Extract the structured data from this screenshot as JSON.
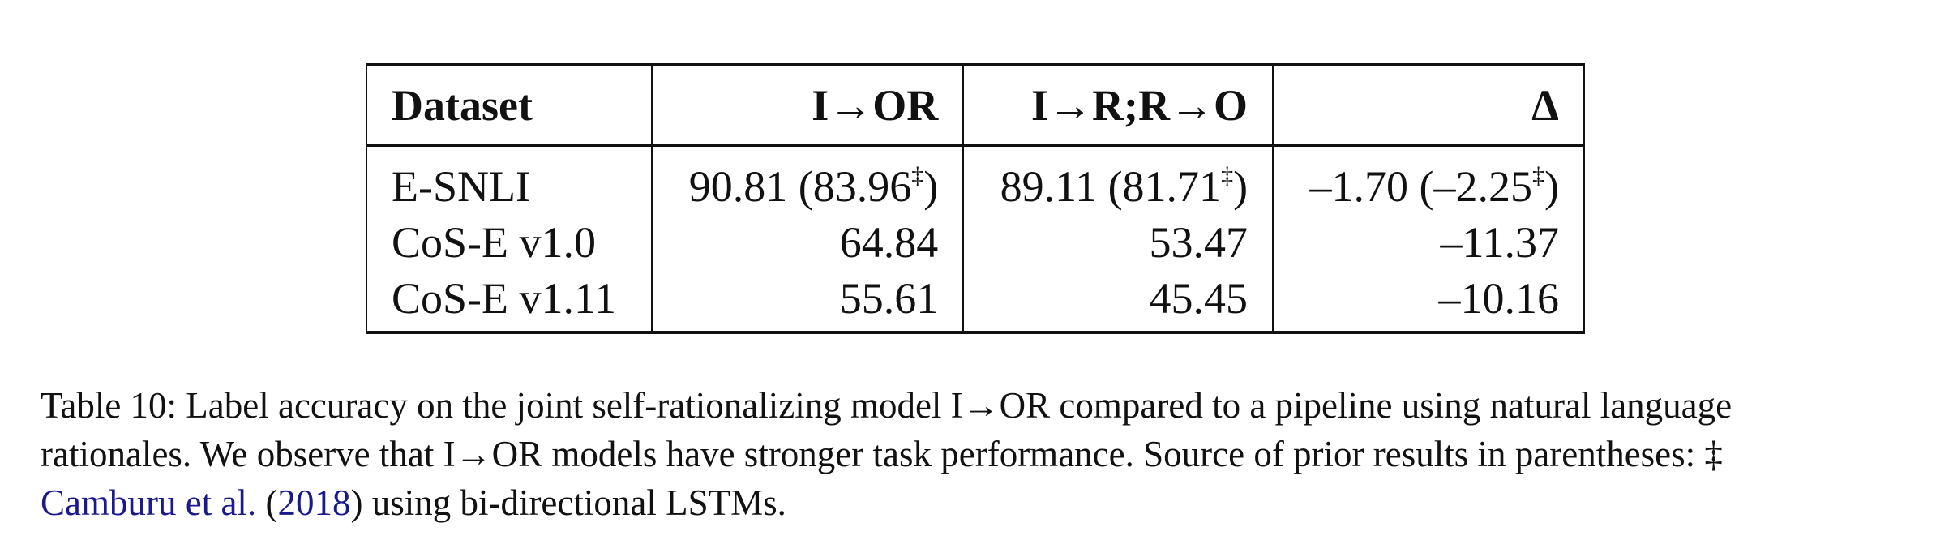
{
  "table": {
    "header": [
      "Dataset",
      "I→OR",
      "I→R;R→O",
      "Δ"
    ],
    "rows": [
      [
        "E-SNLI",
        [
          "90.81 (83.96",
          "‡",
          ")"
        ],
        [
          "89.11 (81.71",
          "‡",
          ")"
        ],
        [
          "–1.70 (–2.25",
          "‡",
          ")"
        ]
      ],
      [
        "CoS-E v1.0",
        "64.84",
        "53.47",
        "–11.37"
      ],
      [
        "CoS-E v1.11",
        "55.61",
        "45.45",
        "–10.16"
      ]
    ]
  },
  "caption": {
    "lines": [
      "Table 10: Label accuracy on the joint self-rationalizing model I→OR compared to a pipeline using natural language",
      "rationales. We observe that I→OR models have stronger task performance. Source of prior results in parentheses: ‡"
    ],
    "last_line": [
      "Camburu et al.",
      " (",
      "2018",
      ")",
      " using bi-directional LSTMs."
    ]
  }
}
